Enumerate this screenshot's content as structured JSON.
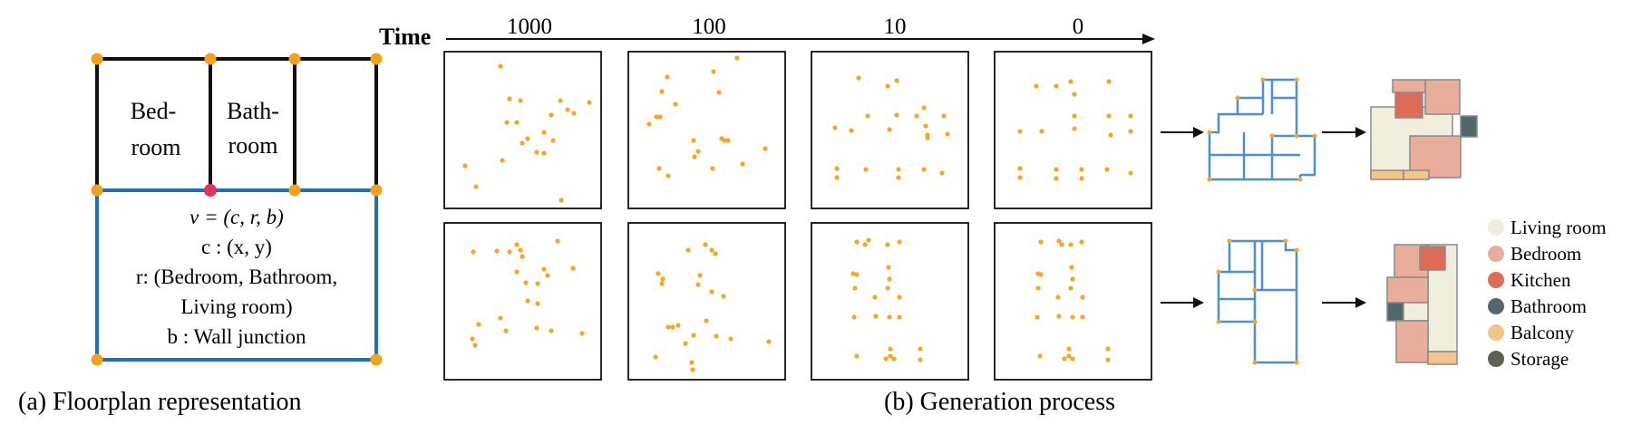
{
  "panel_a": {
    "caption": "(a) Floorplan representation",
    "rooms": [
      {
        "line1": "Bed-",
        "line2": "room"
      },
      {
        "line1": "Bath-",
        "line2": "room"
      }
    ],
    "definition_lines": [
      "v = (c, r, b)",
      "c : (x, y)",
      "r: (Bedroom, Bathroom,",
      "Living room)",
      "b : Wall junction"
    ],
    "colors": {
      "wall_black": "#111111",
      "wall_blue": "#1f6fb2",
      "corner": "#f5a21b",
      "highlight": "#e0325c"
    }
  },
  "panel_b": {
    "caption": "(b) Generation process",
    "time_label": "Time",
    "timesteps": [
      "1000",
      "100",
      "10",
      "0"
    ],
    "legend": [
      {
        "label": "Living room",
        "color": "#f1eedd"
      },
      {
        "label": "Bedroom",
        "color": "#e9ad9c"
      },
      {
        "label": "Kitchen",
        "color": "#de6b55"
      },
      {
        "label": "Bathroom",
        "color": "#52676b"
      },
      {
        "label": "Balcony",
        "color": "#f2c688"
      },
      {
        "label": "Storage",
        "color": "#5d6150"
      }
    ],
    "colors": {
      "point": "#f5a623",
      "graph_edge": "#4a90d9"
    }
  }
}
